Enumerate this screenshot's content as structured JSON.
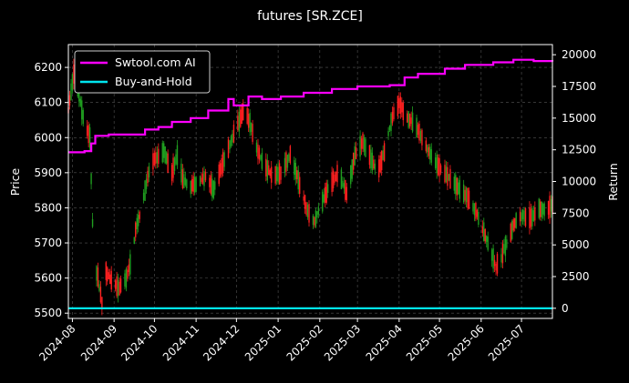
{
  "chart_data": {
    "type": "line",
    "title": "futures [SR.ZCE]",
    "ylabel_left": "Price",
    "ylabel_right": "Return",
    "x_range": [
      "2024-07-29",
      "2025-07-24"
    ],
    "x_ticks": [
      "2024-08",
      "2024-09",
      "2024-10",
      "2024-11",
      "2024-12",
      "2025-01",
      "2025-02",
      "2025-03",
      "2025-04",
      "2025-05",
      "2025-06",
      "2025-07"
    ],
    "ylim_left": [
      5485,
      6265
    ],
    "yticks_left": [
      5500,
      5600,
      5700,
      5800,
      5900,
      6000,
      6100,
      6200
    ],
    "ylim_right": [
      -800,
      20800
    ],
    "yticks_right": [
      0,
      2500,
      5000,
      7500,
      10000,
      12500,
      15000,
      17500,
      20000
    ],
    "grid": true,
    "legend_position": "upper left",
    "colors": {
      "up": "#ff2020",
      "down": "#20a020",
      "ai": "#ff00ff",
      "bh": "#00e5ee",
      "background": "#000000",
      "grid": "#555555"
    },
    "price_anchors": [
      {
        "x": "2024-07-29",
        "y": 6080
      },
      {
        "x": "2024-08-02",
        "y": 6180
      },
      {
        "x": "2024-08-06",
        "y": 6120
      },
      {
        "x": "2024-08-10",
        "y": 6040
      },
      {
        "x": "2024-08-14",
        "y": 6000
      },
      {
        "x": "2024-08-17",
        "y": 5640
      },
      {
        "x": "2024-08-20",
        "y": 5600
      },
      {
        "x": "2024-08-23",
        "y": 5530
      },
      {
        "x": "2024-08-26",
        "y": 5620
      },
      {
        "x": "2024-08-30",
        "y": 5590
      },
      {
        "x": "2024-09-05",
        "y": 5570
      },
      {
        "x": "2024-09-10",
        "y": 5600
      },
      {
        "x": "2024-09-14",
        "y": 5650
      },
      {
        "x": "2024-09-17",
        "y": 5740
      },
      {
        "x": "2024-09-20",
        "y": 5780
      },
      {
        "x": "2024-09-24",
        "y": 5850
      },
      {
        "x": "2024-09-28",
        "y": 5920
      },
      {
        "x": "2024-10-02",
        "y": 5940
      },
      {
        "x": "2024-10-08",
        "y": 5960
      },
      {
        "x": "2024-10-14",
        "y": 5900
      },
      {
        "x": "2024-10-18",
        "y": 5950
      },
      {
        "x": "2024-10-22",
        "y": 5880
      },
      {
        "x": "2024-10-27",
        "y": 5860
      },
      {
        "x": "2024-11-02",
        "y": 5870
      },
      {
        "x": "2024-11-08",
        "y": 5890
      },
      {
        "x": "2024-11-14",
        "y": 5850
      },
      {
        "x": "2024-11-20",
        "y": 5920
      },
      {
        "x": "2024-11-26",
        "y": 5980
      },
      {
        "x": "2024-12-02",
        "y": 6040
      },
      {
        "x": "2024-12-07",
        "y": 6080
      },
      {
        "x": "2024-12-12",
        "y": 6030
      },
      {
        "x": "2024-12-17",
        "y": 5960
      },
      {
        "x": "2024-12-22",
        "y": 5920
      },
      {
        "x": "2024-12-28",
        "y": 5890
      },
      {
        "x": "2025-01-03",
        "y": 5900
      },
      {
        "x": "2025-01-10",
        "y": 5950
      },
      {
        "x": "2025-01-16",
        "y": 5880
      },
      {
        "x": "2025-01-22",
        "y": 5800
      },
      {
        "x": "2025-01-28",
        "y": 5760
      },
      {
        "x": "2025-02-03",
        "y": 5820
      },
      {
        "x": "2025-02-09",
        "y": 5870
      },
      {
        "x": "2025-02-15",
        "y": 5900
      },
      {
        "x": "2025-02-21",
        "y": 5840
      },
      {
        "x": "2025-02-27",
        "y": 5950
      },
      {
        "x": "2025-03-05",
        "y": 5990
      },
      {
        "x": "2025-03-11",
        "y": 5940
      },
      {
        "x": "2025-03-16",
        "y": 5900
      },
      {
        "x": "2025-03-21",
        "y": 5960
      },
      {
        "x": "2025-03-27",
        "y": 6060
      },
      {
        "x": "2025-04-01",
        "y": 6100
      },
      {
        "x": "2025-04-06",
        "y": 6060
      },
      {
        "x": "2025-04-12",
        "y": 6040
      },
      {
        "x": "2025-04-18",
        "y": 6000
      },
      {
        "x": "2025-04-23",
        "y": 5960
      },
      {
        "x": "2025-04-28",
        "y": 5930
      },
      {
        "x": "2025-05-04",
        "y": 5900
      },
      {
        "x": "2025-05-10",
        "y": 5880
      },
      {
        "x": "2025-05-16",
        "y": 5850
      },
      {
        "x": "2025-05-22",
        "y": 5830
      },
      {
        "x": "2025-05-28",
        "y": 5790
      },
      {
        "x": "2025-06-03",
        "y": 5730
      },
      {
        "x": "2025-06-08",
        "y": 5680
      },
      {
        "x": "2025-06-12",
        "y": 5630
      },
      {
        "x": "2025-06-16",
        "y": 5660
      },
      {
        "x": "2025-06-21",
        "y": 5710
      },
      {
        "x": "2025-06-26",
        "y": 5760
      },
      {
        "x": "2025-07-02",
        "y": 5780
      },
      {
        "x": "2025-07-08",
        "y": 5770
      },
      {
        "x": "2025-07-14",
        "y": 5800
      },
      {
        "x": "2025-07-19",
        "y": 5790
      },
      {
        "x": "2025-07-24",
        "y": 5810
      }
    ],
    "series": [
      {
        "name": "Swtool.com AI",
        "points": [
          {
            "x": "2024-07-29",
            "y": 12300
          },
          {
            "x": "2024-08-10",
            "y": 12400
          },
          {
            "x": "2024-08-15",
            "y": 13000
          },
          {
            "x": "2024-08-18",
            "y": 13600
          },
          {
            "x": "2024-08-28",
            "y": 13700
          },
          {
            "x": "2024-09-12",
            "y": 13700
          },
          {
            "x": "2024-09-24",
            "y": 14100
          },
          {
            "x": "2024-10-04",
            "y": 14300
          },
          {
            "x": "2024-10-12",
            "y": 14300
          },
          {
            "x": "2024-10-14",
            "y": 14700
          },
          {
            "x": "2024-10-28",
            "y": 15000
          },
          {
            "x": "2024-11-10",
            "y": 15600
          },
          {
            "x": "2024-11-25",
            "y": 16500
          },
          {
            "x": "2024-11-29",
            "y": 16000
          },
          {
            "x": "2024-12-10",
            "y": 16700
          },
          {
            "x": "2024-12-20",
            "y": 16500
          },
          {
            "x": "2025-01-03",
            "y": 16700
          },
          {
            "x": "2025-01-20",
            "y": 17000
          },
          {
            "x": "2025-02-10",
            "y": 17300
          },
          {
            "x": "2025-03-01",
            "y": 17500
          },
          {
            "x": "2025-03-25",
            "y": 17600
          },
          {
            "x": "2025-04-05",
            "y": 18200
          },
          {
            "x": "2025-04-15",
            "y": 18500
          },
          {
            "x": "2025-05-05",
            "y": 18900
          },
          {
            "x": "2025-05-20",
            "y": 19200
          },
          {
            "x": "2025-06-10",
            "y": 19400
          },
          {
            "x": "2025-06-25",
            "y": 19600
          },
          {
            "x": "2025-07-10",
            "y": 19500
          },
          {
            "x": "2025-07-24",
            "y": 19450
          }
        ]
      },
      {
        "name": "Buy-and-Hold",
        "points": [
          {
            "x": "2024-07-29",
            "y": 0
          },
          {
            "x": "2025-07-24",
            "y": 0
          }
        ]
      }
    ]
  }
}
